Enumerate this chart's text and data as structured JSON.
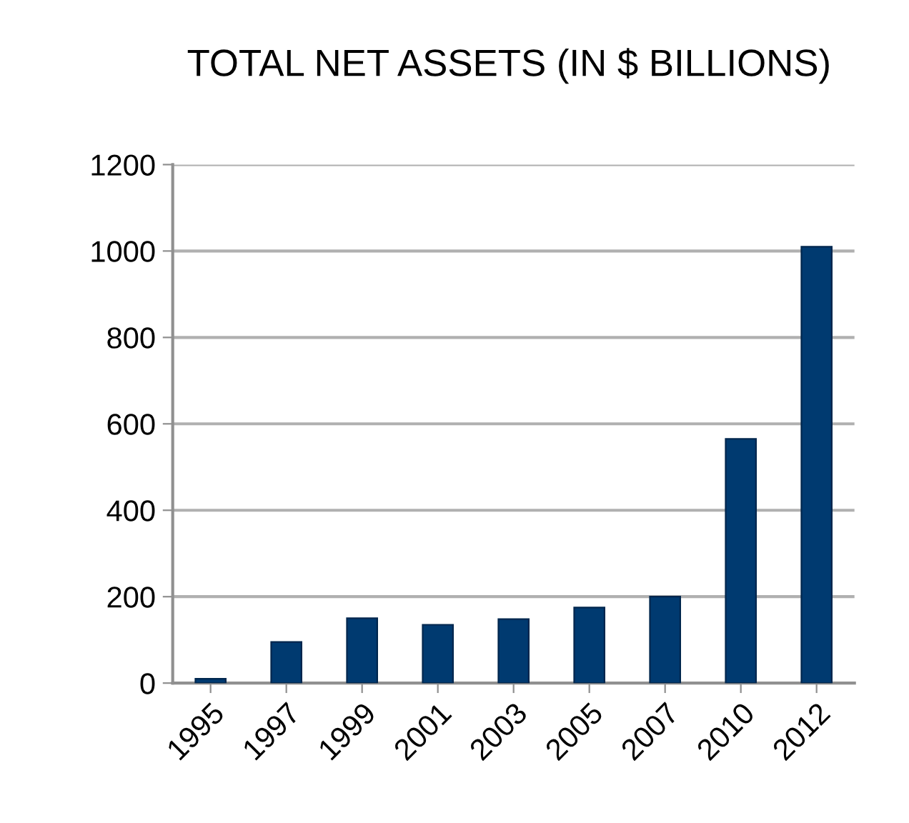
{
  "chart_data": {
    "type": "bar",
    "title": "TOTAL NET ASSETS (IN $ BILLIONS)",
    "categories": [
      "1995",
      "1997",
      "1999",
      "2001",
      "2003",
      "2005",
      "2007",
      "2010",
      "2012"
    ],
    "values": [
      10,
      95,
      150,
      135,
      148,
      175,
      200,
      565,
      1010
    ],
    "color": "#003a70",
    "ylim": [
      0,
      1200
    ],
    "yticks": [
      0,
      200,
      400,
      600,
      800,
      1000,
      1200
    ],
    "grid": "y"
  }
}
